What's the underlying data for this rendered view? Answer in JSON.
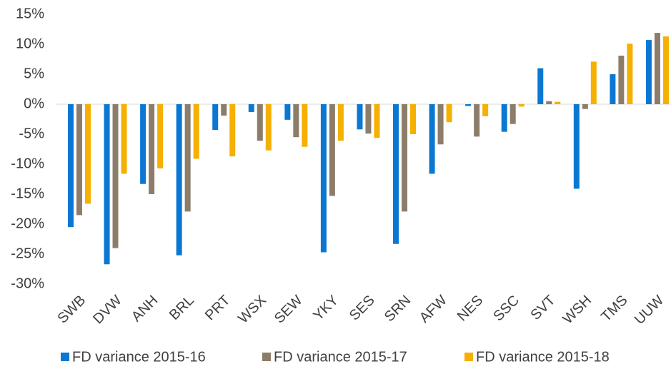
{
  "chart_data": {
    "type": "bar",
    "categories": [
      "SWB",
      "DVW",
      "ANH",
      "BRL",
      "PRT",
      "WSX",
      "SEW",
      "YKY",
      "SES",
      "SRN",
      "AFW",
      "NES",
      "SSC",
      "SVT",
      "WSH",
      "TMS",
      "UUW"
    ],
    "series": [
      {
        "name": "FD variance 2015-16",
        "color": "#0a78d2",
        "values": [
          -20.5,
          -26.7,
          -13.3,
          -25.2,
          -4.3,
          -1.3,
          -2.6,
          -24.7,
          -4.2,
          -23.3,
          -11.6,
          -0.3,
          -4.6,
          6,
          -14.1,
          5,
          10.7
        ]
      },
      {
        "name": "FD variance 2015-17",
        "color": "#8c7d6a",
        "values": [
          -18.5,
          -24,
          -15,
          -17.9,
          -1.9,
          -6.1,
          -5.5,
          -15.3,
          -4.9,
          -17.9,
          -6.7,
          -5.4,
          -3.3,
          0.5,
          -0.8,
          8.1,
          11.9
        ]
      },
      {
        "name": "FD variance 2015-18",
        "color": "#f5b000",
        "values": [
          -16.6,
          -11.6,
          -10.7,
          -9.1,
          -8.7,
          -7.7,
          -7.1,
          -6.1,
          -5.6,
          -5,
          -3,
          -2,
          -0.4,
          0.4,
          7.1,
          10.1,
          11.3
        ]
      }
    ],
    "ylim": [
      -30,
      15
    ],
    "yticks": [
      {
        "value": -30,
        "label": "-30%"
      },
      {
        "value": -25,
        "label": "-25%"
      },
      {
        "value": -20,
        "label": "-20%"
      },
      {
        "value": -15,
        "label": "-15%"
      },
      {
        "value": -10,
        "label": "-10%"
      },
      {
        "value": -5,
        "label": "-5%"
      },
      {
        "value": 0,
        "label": "0%"
      },
      {
        "value": 5,
        "label": "5%"
      },
      {
        "value": 10,
        "label": "10%"
      },
      {
        "value": 15,
        "label": "15%"
      }
    ],
    "grid": false,
    "legend": "bottom"
  }
}
